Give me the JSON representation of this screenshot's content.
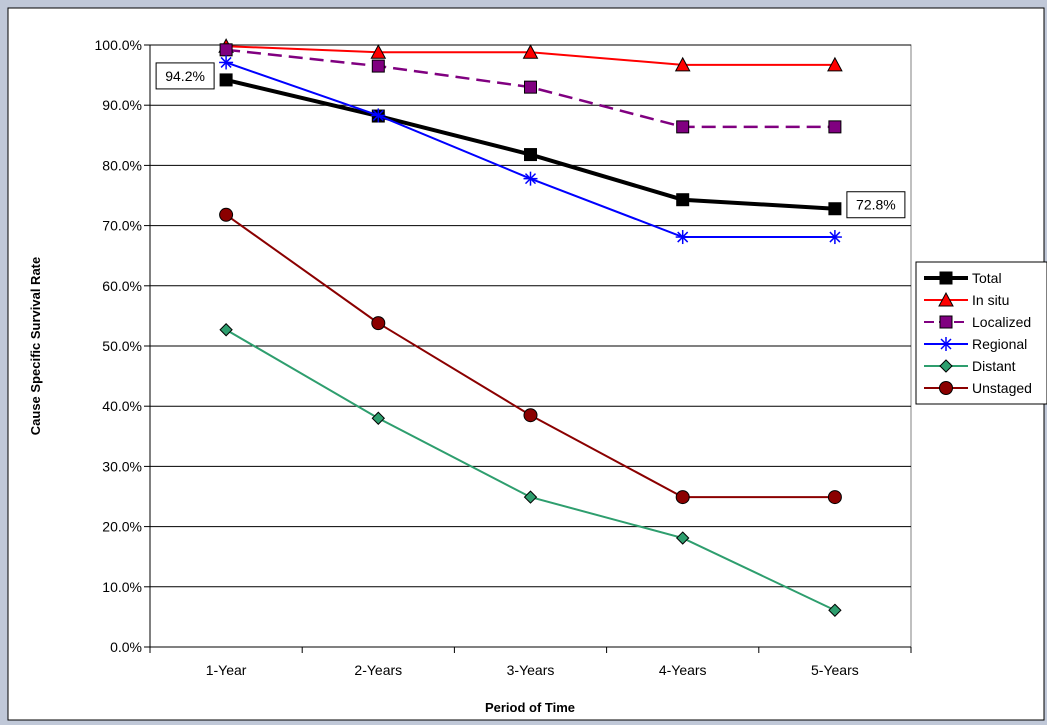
{
  "chart_data": {
    "type": "line",
    "title": "",
    "xlabel": "Period of Time",
    "ylabel": "Cause Specific Survival Rate",
    "categories": [
      "1-Year",
      "2-Years",
      "3-Years",
      "4-Years",
      "5-Years"
    ],
    "ylim": [
      0,
      100
    ],
    "yticks": [
      "0.0%",
      "10.0%",
      "20.0%",
      "30.0%",
      "40.0%",
      "50.0%",
      "60.0%",
      "70.0%",
      "80.0%",
      "90.0%",
      "100.0%"
    ],
    "grid": true,
    "legend_position": "right",
    "series": [
      {
        "name": "Total",
        "values": [
          94.2,
          88.2,
          81.8,
          74.3,
          72.8
        ],
        "color": "#000000",
        "marker": "square",
        "dash": "solid"
      },
      {
        "name": "In situ",
        "values": [
          99.8,
          98.8,
          98.8,
          96.7,
          96.7
        ],
        "color": "#ff0000",
        "marker": "triangle",
        "dash": "solid"
      },
      {
        "name": "Localized",
        "values": [
          99.2,
          96.5,
          93.0,
          86.4,
          86.4
        ],
        "color": "#800080",
        "marker": "square",
        "dash": "dashed"
      },
      {
        "name": "Regional",
        "values": [
          97.1,
          88.3,
          77.8,
          68.1,
          68.1
        ],
        "color": "#0000ff",
        "marker": "asterisk",
        "dash": "solid"
      },
      {
        "name": "Distant",
        "values": [
          52.7,
          38.0,
          24.9,
          18.1,
          6.1
        ],
        "color": "#2e9e6e",
        "marker": "diamond",
        "dash": "solid"
      },
      {
        "name": "Unstaged",
        "values": [
          71.8,
          53.8,
          38.5,
          24.9,
          24.9
        ],
        "color": "#8b0000",
        "marker": "circle",
        "dash": "solid"
      }
    ],
    "annotations": [
      {
        "text": "94.2%",
        "series": "Total",
        "category": "1-Year"
      },
      {
        "text": "72.8%",
        "series": "Total",
        "category": "5-Years"
      }
    ]
  }
}
